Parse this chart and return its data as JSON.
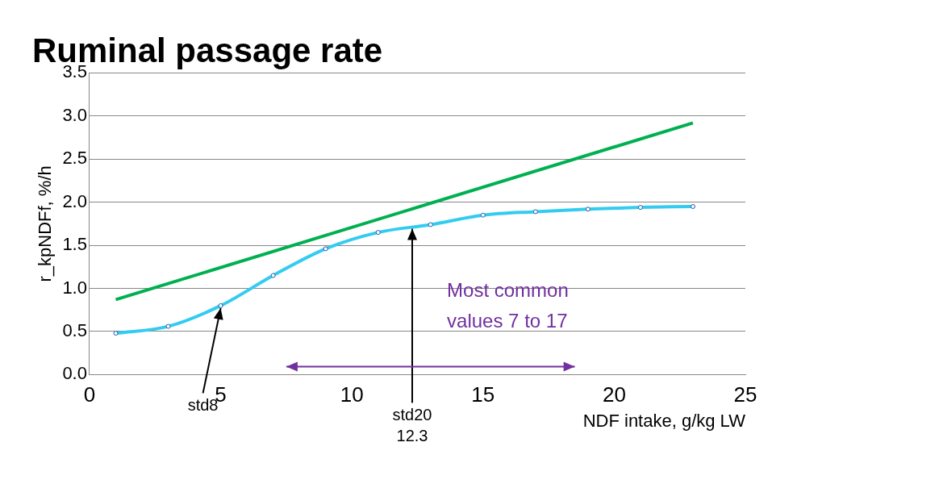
{
  "chart_data": {
    "type": "line",
    "title": "Ruminal passage rate",
    "xlabel": "NDF intake, g/kg LW",
    "ylabel": "r_kpNDFf, %/h",
    "xlim": [
      0,
      25
    ],
    "xticks": [
      0,
      5,
      10,
      15,
      20,
      25
    ],
    "ylim": [
      0,
      3.5
    ],
    "yticks": [
      {
        "value": 0,
        "label": "0.0"
      },
      {
        "value": 0.5,
        "label": "0.5"
      },
      {
        "value": 1,
        "label": "1.0"
      },
      {
        "value": 1.5,
        "label": "1.5"
      },
      {
        "value": 2,
        "label": "2.0"
      },
      {
        "value": 2.5,
        "label": "2.5"
      },
      {
        "value": 3,
        "label": "3.0"
      },
      {
        "value": 3.5,
        "label": "3.5"
      }
    ],
    "grid": "y",
    "legend": false,
    "series": [
      {
        "color": "#00b050",
        "x": [
          1,
          23
        ],
        "values": [
          0.87,
          2.92
        ],
        "marker": "none"
      },
      {
        "color": "#33ccf0",
        "x": [
          1,
          3,
          5,
          7,
          9,
          11,
          13,
          15,
          17,
          19,
          21,
          23
        ],
        "values": [
          0.48,
          0.56,
          0.8,
          1.15,
          1.46,
          1.65,
          1.74,
          1.85,
          1.89,
          1.92,
          1.94,
          1.95
        ],
        "marker": "circle"
      }
    ],
    "annotations": [
      {
        "text": "std8",
        "x": 5,
        "y": 0.8
      },
      {
        "text": "std20\n12.3",
        "x": 12.3,
        "y": 1.72
      },
      "Most common\nvalues 7 to 17"
    ]
  }
}
